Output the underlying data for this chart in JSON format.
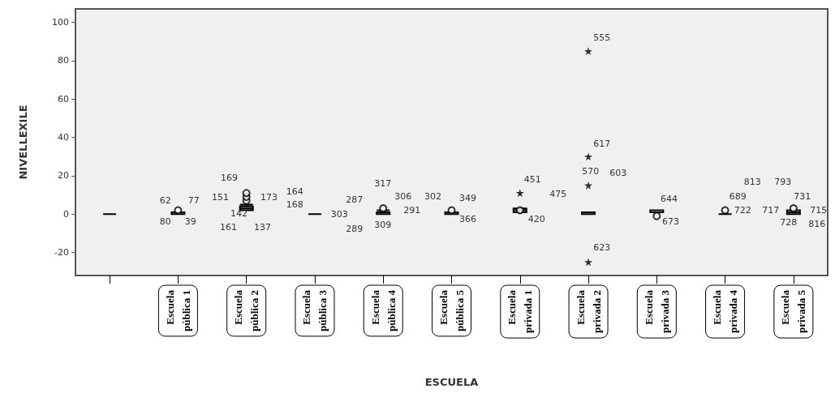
{
  "chart_data": {
    "type": "box",
    "xlabel": "ESCUELA",
    "ylabel": "NIVELLEXILE",
    "grid": false,
    "marker": "circle",
    "color": "#000000",
    "ylim": [
      -32,
      107
    ],
    "yticks": [
      -20,
      0,
      20,
      40,
      60,
      80,
      100
    ],
    "categories": [
      null,
      "Escuela pública 1",
      "Escuela pública 2",
      "Escuela pública 3",
      "Escuela pública 4",
      "Escuela pública 5",
      "Escuela privada 1",
      "Escuela privada 2",
      "Escuela privada 3",
      "Escuela privada 4",
      "Escuela privada 5"
    ],
    "boxes": [
      {
        "low": 0,
        "q1": 0,
        "median": 0,
        "q3": 0,
        "high": 0
      },
      {
        "low": 0,
        "q1": 0,
        "median": 0,
        "q3": 1,
        "high": 1,
        "outliers": [
          2
        ]
      },
      {
        "low": 2,
        "q1": 2,
        "median": 3,
        "q3": 4,
        "high": 5,
        "outliers": [
          7,
          9,
          11
        ]
      },
      {
        "low": 0,
        "q1": 0,
        "median": 0,
        "q3": 0,
        "high": 0
      },
      {
        "low": 0,
        "q1": 0,
        "median": 0,
        "q3": 1,
        "high": 2,
        "outliers": [
          3
        ]
      },
      {
        "low": 0,
        "q1": 0,
        "median": 0,
        "q3": 1,
        "high": 1,
        "outliers": [
          2
        ]
      },
      {
        "low": 1,
        "q1": 1,
        "median": 2,
        "q3": 3,
        "high": 3,
        "outliers": [
          2
        ]
      },
      {
        "low": 0,
        "q1": 0,
        "median": 1,
        "q3": 1,
        "high": 1
      },
      {
        "low": 1,
        "q1": 1,
        "median": 2,
        "q3": 2,
        "high": 2,
        "outliers": [
          -1
        ]
      },
      {
        "low": 0,
        "q1": 0,
        "median": 0,
        "q3": 0,
        "high": 0,
        "outliers": [
          2
        ]
      },
      {
        "low": 0,
        "q1": 0,
        "median": 1,
        "q3": 2,
        "high": 2,
        "outliers": [
          3
        ]
      }
    ],
    "series": [
      {
        "type": "scatter",
        "marker": "star",
        "color": "#000000",
        "x": [
          "Escuela privada 1",
          "Escuela privada 2",
          "Escuela privada 2",
          "Escuela privada 2",
          "Escuela privada 2"
        ],
        "values": [
          11,
          85,
          30,
          15,
          -25
        ]
      }
    ],
    "annotations": [
      "62",
      "77",
      "80",
      "39",
      "169",
      "151",
      "173",
      "142",
      "161",
      "137",
      "164",
      "168",
      "303",
      "287",
      "289",
      "317",
      "309",
      "306",
      "291",
      "302",
      "349",
      "366",
      "451",
      "475",
      "420",
      "555",
      "617",
      "570",
      "603",
      "623",
      "644",
      "673",
      "689",
      "722",
      "813",
      "793",
      "717",
      "731",
      "715",
      "728",
      "816"
    ]
  }
}
